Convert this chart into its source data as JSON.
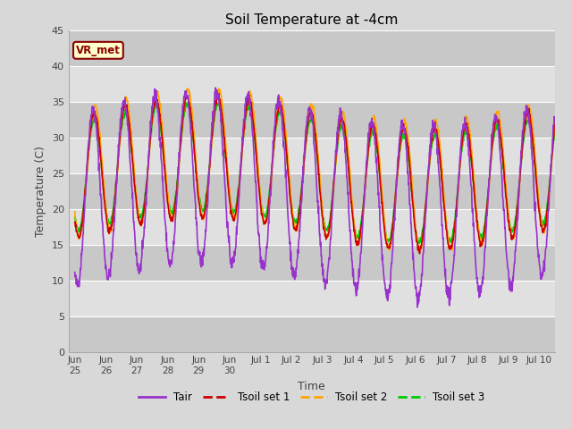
{
  "title": "Soil Temperature at -4cm",
  "xlabel": "Time",
  "ylabel": "Temperature (C)",
  "ylim": [
    0,
    45
  ],
  "yticks": [
    0,
    5,
    10,
    15,
    20,
    25,
    30,
    35,
    40,
    45
  ],
  "outer_bg": "#d8d8d8",
  "plot_bg_light": "#e8e8e8",
  "plot_bg_dark": "#d0d0d0",
  "colors": {
    "Tair": "#9932CC",
    "Tsoil1": "#CC0000",
    "Tsoil2": "#FFA500",
    "Tsoil3": "#00CC00"
  },
  "annotation_text": "VR_met",
  "annotation_bg": "#FFFFCC",
  "annotation_border": "#8B0000",
  "legend_labels": [
    "Tair",
    "Tsoil set 1",
    "Tsoil set 2",
    "Tsoil set 3"
  ],
  "tick_positions": [
    0,
    1,
    2,
    3,
    4,
    5,
    6,
    7,
    8,
    9,
    10,
    11,
    12,
    13,
    14,
    15
  ],
  "tick_labels": [
    "Jun\n25",
    "Jun\n26",
    "Jun\n27",
    "Jun\n28",
    "Jun\n29",
    "Jun\n30",
    "Jul 1",
    "Jul 2",
    "Jul 3",
    "Jul 4",
    "Jul 5",
    "Jul 6",
    "Jul 7",
    "Jul 8",
    "Jul 9",
    "Jul 10"
  ],
  "n_days": 15.5,
  "dt_hours": 0.25
}
